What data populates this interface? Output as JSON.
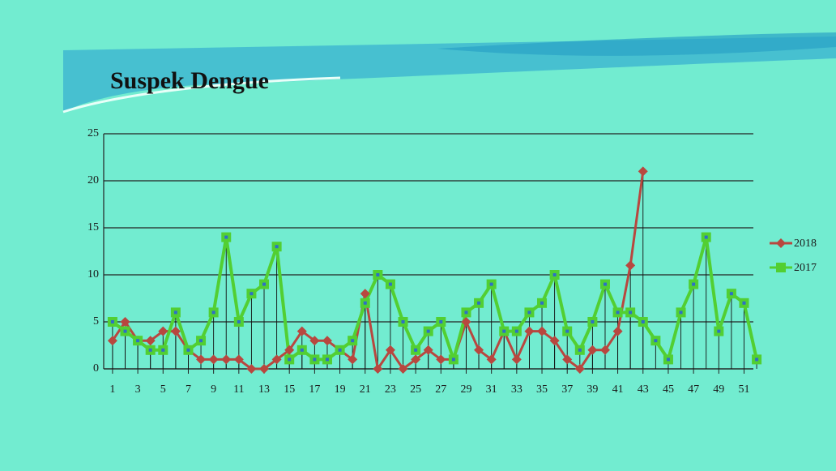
{
  "chart_data": {
    "type": "line",
    "title": "Suspek Dengue",
    "x": [
      1,
      2,
      3,
      4,
      5,
      6,
      7,
      8,
      9,
      10,
      11,
      12,
      13,
      14,
      15,
      16,
      17,
      18,
      19,
      20,
      21,
      22,
      23,
      24,
      25,
      26,
      27,
      28,
      29,
      30,
      31,
      32,
      33,
      34,
      35,
      36,
      37,
      38,
      39,
      40,
      41,
      42,
      43,
      44,
      45,
      46,
      47,
      48,
      49,
      50,
      51,
      52
    ],
    "xlim": [
      0.3,
      52.7
    ],
    "xticks": [
      1,
      3,
      5,
      7,
      9,
      11,
      13,
      15,
      17,
      19,
      21,
      23,
      25,
      27,
      29,
      31,
      33,
      35,
      37,
      39,
      41,
      43,
      45,
      47,
      49,
      51
    ],
    "ylim": [
      0,
      25
    ],
    "yticks": [
      0,
      5,
      10,
      15,
      20,
      25
    ],
    "grid": true,
    "legend": "right",
    "series": [
      {
        "name": "2018",
        "color": "#b8473f",
        "marker": "diamond",
        "values": [
          3,
          5,
          3,
          3,
          4,
          4,
          2,
          1,
          1,
          1,
          1,
          0,
          0,
          1,
          2,
          4,
          3,
          3,
          2,
          1,
          8,
          0,
          2,
          0,
          1,
          2,
          1,
          1,
          5,
          2,
          1,
          4,
          1,
          4,
          4,
          3,
          1,
          0,
          2,
          2,
          4,
          11,
          21,
          null,
          null,
          null,
          null,
          null,
          null,
          null,
          null,
          null
        ]
      },
      {
        "name": "2017",
        "color": "#52cf32",
        "marker": "square",
        "values": [
          5,
          4,
          3,
          2,
          2,
          6,
          2,
          3,
          6,
          14,
          5,
          8,
          9,
          13,
          1,
          2,
          1,
          1,
          2,
          3,
          7,
          10,
          9,
          5,
          2,
          4,
          5,
          1,
          6,
          7,
          9,
          4,
          4,
          6,
          7,
          10,
          4,
          2,
          5,
          9,
          6,
          6,
          5,
          3,
          1,
          6,
          9,
          14,
          4,
          8,
          7,
          1
        ]
      }
    ]
  }
}
